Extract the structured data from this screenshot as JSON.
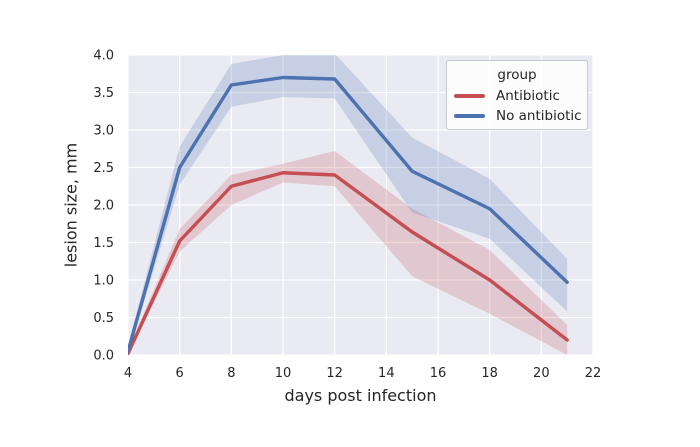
{
  "chart_data": {
    "type": "line",
    "title": "",
    "xlabel": "days post infection",
    "ylabel": "lesion size, mm",
    "xlim": [
      4,
      22
    ],
    "ylim": [
      0,
      4
    ],
    "x_ticks": [
      4,
      6,
      8,
      10,
      12,
      14,
      16,
      18,
      20,
      22
    ],
    "x_tick_labels": [
      "4",
      "6",
      "8",
      "10",
      "12",
      "14",
      "16",
      "18",
      "20",
      "22"
    ],
    "y_ticks": [
      0,
      0.5,
      1,
      1.5,
      2,
      2.5,
      3,
      3.5,
      4
    ],
    "y_tick_labels": [
      "0.0",
      "0.5",
      "1.0",
      "1.5",
      "2.0",
      "2.5",
      "3.0",
      "3.5",
      "4.0"
    ],
    "grid": true,
    "legend": {
      "title": "group",
      "position": "upper right"
    },
    "x": [
      4,
      6,
      8,
      10,
      12,
      15,
      18,
      21
    ],
    "series": [
      {
        "name": "Antibiotic",
        "color": "#c44e52",
        "values": [
          0.02,
          1.52,
          2.25,
          2.43,
          2.4,
          1.64,
          1.0,
          0.2
        ],
        "band_low": [
          0.0,
          1.38,
          2.0,
          2.3,
          2.25,
          1.05,
          0.55,
          0.0
        ],
        "band_high": [
          0.06,
          1.68,
          2.4,
          2.55,
          2.72,
          1.95,
          1.4,
          0.4
        ]
      },
      {
        "name": "No antibiotic",
        "color": "#4c72b0",
        "values": [
          0.05,
          2.5,
          3.6,
          3.7,
          3.68,
          2.45,
          1.95,
          0.97
        ],
        "band_low": [
          0.0,
          2.27,
          3.31,
          3.44,
          3.42,
          1.9,
          1.55,
          0.58
        ],
        "band_high": [
          0.12,
          2.78,
          3.88,
          4.0,
          4.02,
          2.9,
          2.35,
          1.28
        ]
      }
    ],
    "plot_bg": "#eaeaf2",
    "grid_color": "#ffffff",
    "text_color": "#262626",
    "band_opacity": 0.22,
    "line_width": 3.4
  }
}
